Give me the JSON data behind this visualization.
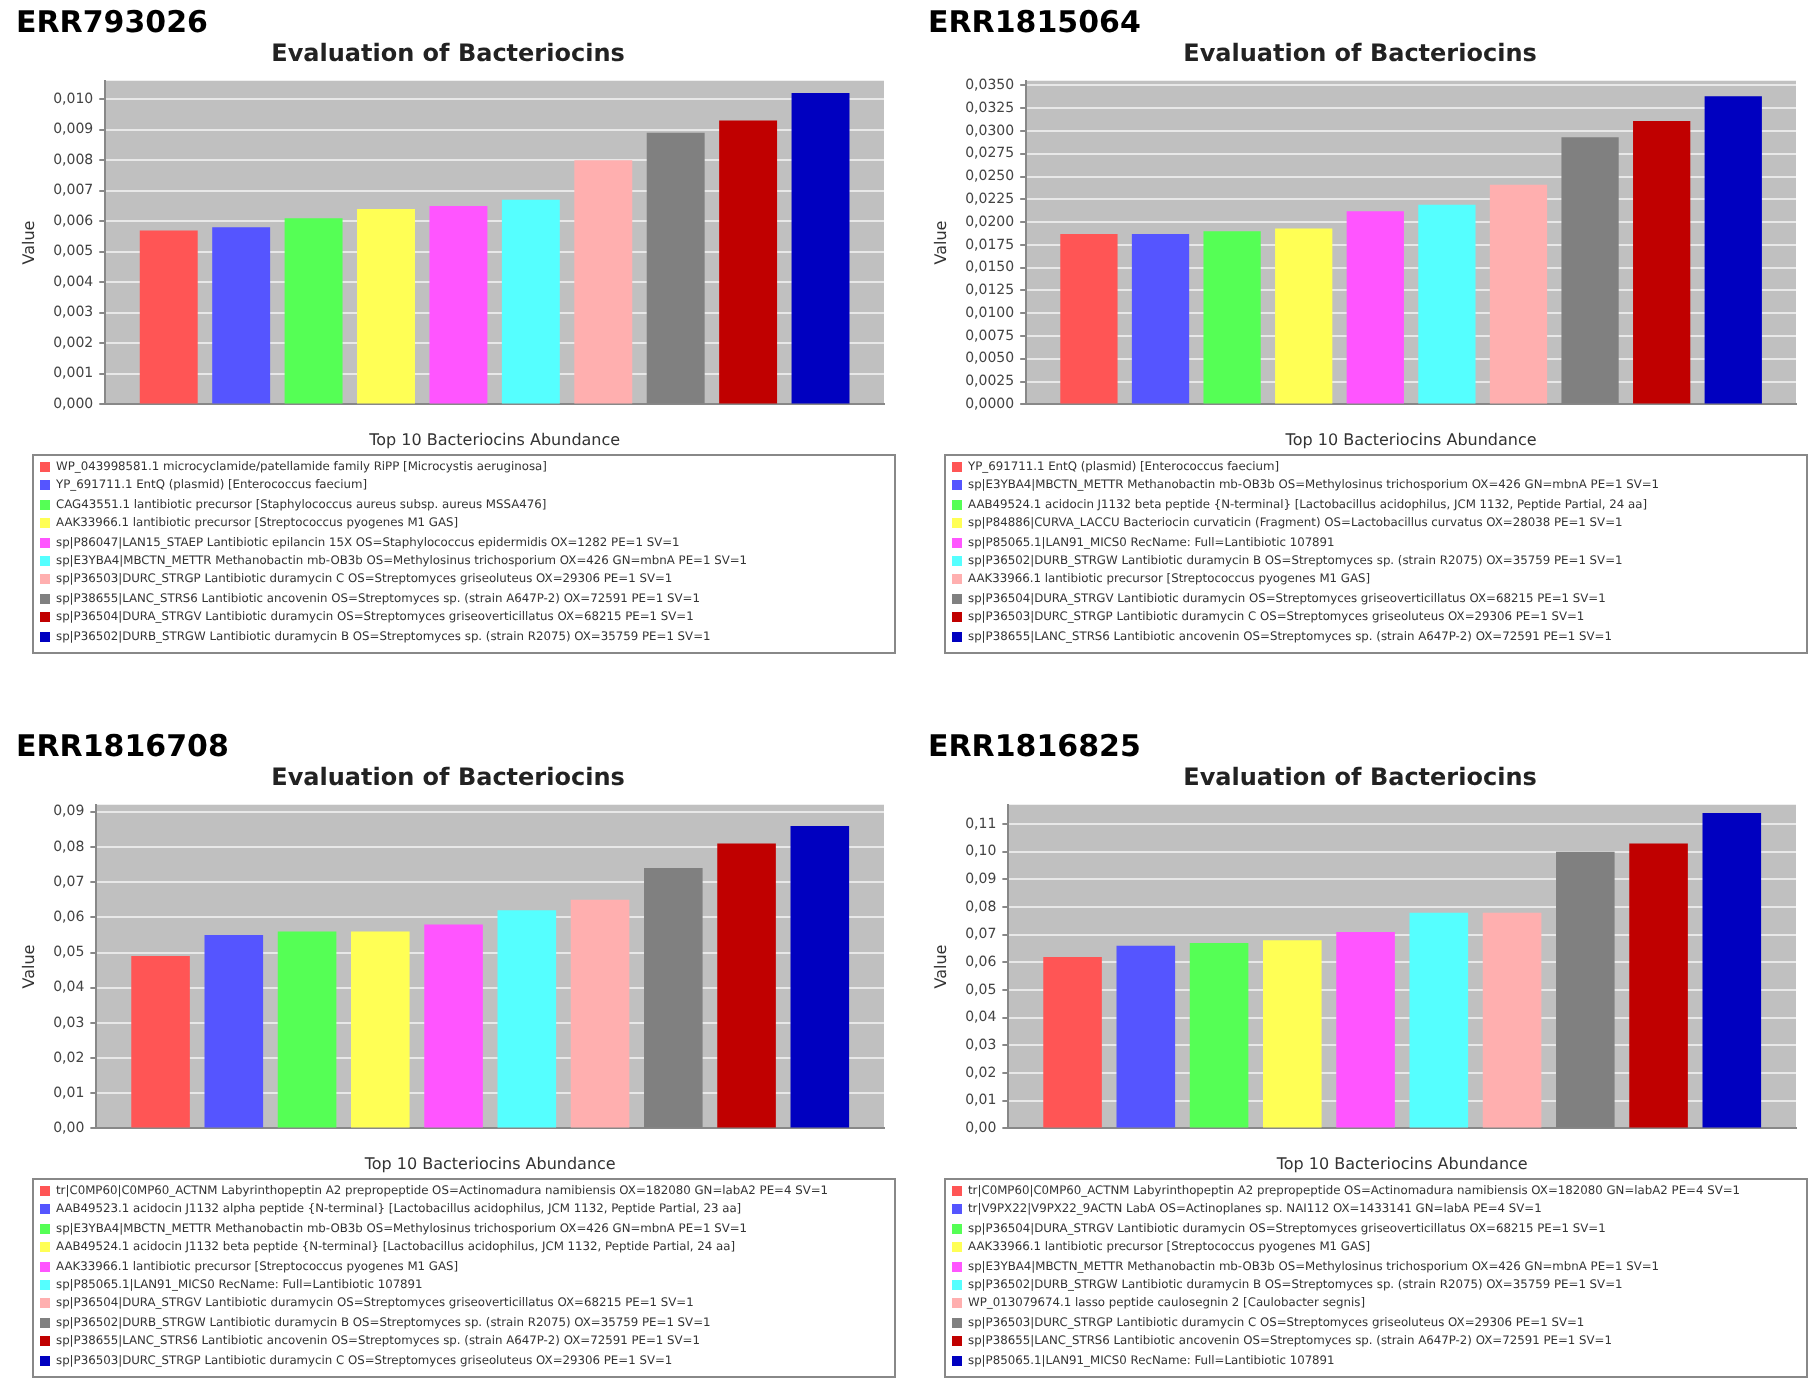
{
  "chart_data": [
    {
      "type": "bar",
      "annotations": [
        "ERR793026"
      ],
      "title": "Evaluation of Bacteriocins",
      "xlabel": "Top 10 Bacteriocins Abundance",
      "ylabel": "Value",
      "categories": [
        null
      ],
      "grid": "y",
      "legend": "bottom",
      "ylim": [
        0,
        0.0106
      ],
      "yticks": [
        {
          "value": 0,
          "label": "0,000"
        },
        {
          "value": 0.001,
          "label": "0,001"
        },
        {
          "value": 0.002,
          "label": "0,002"
        },
        {
          "value": 0.003,
          "label": "0,003"
        },
        {
          "value": 0.004,
          "label": "0,004"
        },
        {
          "value": 0.005,
          "label": "0,005"
        },
        {
          "value": 0.006,
          "label": "0,006"
        },
        {
          "value": 0.007,
          "label": "0,007"
        },
        {
          "value": 0.008,
          "label": "0,008"
        },
        {
          "value": 0.009,
          "label": "0,009"
        },
        {
          "value": 0.01,
          "label": "0,010"
        }
      ],
      "series": [
        {
          "name": "WP_043998581.1 microcyclamide/patellamide family RiPP [Microcystis aeruginosa]",
          "color": "#ff5555",
          "values": [
            0.0057
          ]
        },
        {
          "name": "YP_691711.1 EntQ (plasmid) [Enterococcus faecium]",
          "color": "#5555ff",
          "values": [
            0.0058
          ]
        },
        {
          "name": "CAG43551.1 lantibiotic precursor [Staphylococcus aureus subsp. aureus MSSA476]",
          "color": "#55ff55",
          "values": [
            0.0061
          ]
        },
        {
          "name": "AAK33966.1 lantibiotic precursor [Streptococcus pyogenes M1 GAS]",
          "color": "#ffff55",
          "values": [
            0.0064
          ]
        },
        {
          "name": "sp|P86047|LAN15_STAEP Lantibiotic epilancin 15X OS=Staphylococcus epidermidis OX=1282 PE=1 SV=1",
          "color": "#ff55ff",
          "values": [
            0.0065
          ]
        },
        {
          "name": "sp|E3YBA4|MBCTN_METTR Methanobactin mb-OB3b OS=Methylosinus trichosporium OX=426 GN=mbnA PE=1 SV=1",
          "color": "#55ffff",
          "values": [
            0.0067
          ]
        },
        {
          "name": "sp|P36503|DURC_STRGP Lantibiotic duramycin C OS=Streptomyces griseoluteus OX=29306 PE=1 SV=1",
          "color": "#ffafaf",
          "values": [
            0.008
          ]
        },
        {
          "name": "sp|P38655|LANC_STRS6 Lantibiotic ancovenin OS=Streptomyces sp. (strain A647P-2) OX=72591 PE=1 SV=1",
          "color": "#808080",
          "values": [
            0.0089
          ]
        },
        {
          "name": "sp|P36504|DURA_STRGV Lantibiotic duramycin OS=Streptomyces griseoverticillatus OX=68215 PE=1 SV=1",
          "color": "#c00000",
          "values": [
            0.0093
          ]
        },
        {
          "name": "sp|P36502|DURB_STRGW Lantibiotic duramycin B OS=Streptomyces sp. (strain R2075) OX=35759 PE=1 SV=1",
          "color": "#0000c0",
          "values": [
            0.0102
          ]
        }
      ]
    },
    {
      "type": "bar",
      "annotations": [
        "ERR1815064"
      ],
      "title": "Evaluation of Bacteriocins",
      "xlabel": "Top 10 Bacteriocins Abundance",
      "ylabel": "Value",
      "categories": [
        null
      ],
      "grid": "y",
      "legend": "bottom",
      "ylim": [
        0,
        0.0355
      ],
      "yticks": [
        {
          "value": 0,
          "label": "0,0000"
        },
        {
          "value": 0.0025,
          "label": "0,0025"
        },
        {
          "value": 0.005,
          "label": "0,0050"
        },
        {
          "value": 0.0075,
          "label": "0,0075"
        },
        {
          "value": 0.01,
          "label": "0,0100"
        },
        {
          "value": 0.0125,
          "label": "0,0125"
        },
        {
          "value": 0.015,
          "label": "0,0150"
        },
        {
          "value": 0.0175,
          "label": "0,0175"
        },
        {
          "value": 0.02,
          "label": "0,0200"
        },
        {
          "value": 0.0225,
          "label": "0,0225"
        },
        {
          "value": 0.025,
          "label": "0,0250"
        },
        {
          "value": 0.0275,
          "label": "0,0275"
        },
        {
          "value": 0.03,
          "label": "0,0300"
        },
        {
          "value": 0.0325,
          "label": "0,0325"
        },
        {
          "value": 0.035,
          "label": "0,0350"
        }
      ],
      "series": [
        {
          "name": "YP_691711.1 EntQ (plasmid) [Enterococcus faecium]",
          "color": "#ff5555",
          "values": [
            0.0187
          ]
        },
        {
          "name": "sp|E3YBA4|MBCTN_METTR Methanobactin mb-OB3b OS=Methylosinus trichosporium OX=426 GN=mbnA PE=1 SV=1",
          "color": "#5555ff",
          "values": [
            0.0187
          ]
        },
        {
          "name": "AAB49524.1 acidocin J1132 beta peptide {N-terminal} [Lactobacillus acidophilus, JCM 1132, Peptide Partial, 24 aa]",
          "color": "#55ff55",
          "values": [
            0.019
          ]
        },
        {
          "name": "sp|P84886|CURVA_LACCU Bacteriocin curvaticin (Fragment) OS=Lactobacillus curvatus OX=28038 PE=1 SV=1",
          "color": "#ffff55",
          "values": [
            0.0193
          ]
        },
        {
          "name": "sp|P85065.1|LAN91_MICS0 RecName: Full=Lantibiotic 107891",
          "color": "#ff55ff",
          "values": [
            0.0212
          ]
        },
        {
          "name": "sp|P36502|DURB_STRGW Lantibiotic duramycin B OS=Streptomyces sp. (strain R2075) OX=35759 PE=1 SV=1",
          "color": "#55ffff",
          "values": [
            0.0219
          ]
        },
        {
          "name": "AAK33966.1 lantibiotic precursor [Streptococcus pyogenes M1 GAS]",
          "color": "#ffafaf",
          "values": [
            0.0241
          ]
        },
        {
          "name": "sp|P36504|DURA_STRGV Lantibiotic duramycin OS=Streptomyces griseoverticillatus OX=68215 PE=1 SV=1",
          "color": "#808080",
          "values": [
            0.0293
          ]
        },
        {
          "name": "sp|P36503|DURC_STRGP Lantibiotic duramycin C OS=Streptomyces griseoluteus OX=29306 PE=1 SV=1",
          "color": "#c00000",
          "values": [
            0.0311
          ]
        },
        {
          "name": "sp|P38655|LANC_STRS6 Lantibiotic ancovenin OS=Streptomyces sp. (strain A647P-2) OX=72591 PE=1 SV=1",
          "color": "#0000c0",
          "values": [
            0.0338
          ]
        }
      ]
    },
    {
      "type": "bar",
      "annotations": [
        "ERR1816708"
      ],
      "title": "Evaluation of Bacteriocins",
      "xlabel": "Top 10 Bacteriocins Abundance",
      "ylabel": "Value",
      "categories": [
        null
      ],
      "grid": "y",
      "legend": "bottom",
      "ylim": [
        0,
        0.092
      ],
      "yticks": [
        {
          "value": 0,
          "label": "0,00"
        },
        {
          "value": 0.01,
          "label": "0,01"
        },
        {
          "value": 0.02,
          "label": "0,02"
        },
        {
          "value": 0.03,
          "label": "0,03"
        },
        {
          "value": 0.04,
          "label": "0,04"
        },
        {
          "value": 0.05,
          "label": "0,05"
        },
        {
          "value": 0.06,
          "label": "0,06"
        },
        {
          "value": 0.07,
          "label": "0,07"
        },
        {
          "value": 0.08,
          "label": "0,08"
        },
        {
          "value": 0.09,
          "label": "0,09"
        }
      ],
      "series": [
        {
          "name": "tr|C0MP60|C0MP60_ACTNM Labyrinthopeptin A2 prepropeptide OS=Actinomadura namibiensis OX=182080 GN=labA2 PE=4 SV=1",
          "color": "#ff5555",
          "values": [
            0.049
          ]
        },
        {
          "name": "AAB49523.1 acidocin J1132 alpha peptide {N-terminal} [Lactobacillus acidophilus, JCM 1132, Peptide Partial, 23 aa]",
          "color": "#5555ff",
          "values": [
            0.055
          ]
        },
        {
          "name": "sp|E3YBA4|MBCTN_METTR Methanobactin mb-OB3b OS=Methylosinus trichosporium OX=426 GN=mbnA PE=1 SV=1",
          "color": "#55ff55",
          "values": [
            0.056
          ]
        },
        {
          "name": "AAB49524.1 acidocin J1132 beta peptide {N-terminal} [Lactobacillus acidophilus, JCM 1132, Peptide Partial, 24 aa]",
          "color": "#ffff55",
          "values": [
            0.056
          ]
        },
        {
          "name": "AAK33966.1 lantibiotic precursor [Streptococcus pyogenes M1 GAS]",
          "color": "#ff55ff",
          "values": [
            0.058
          ]
        },
        {
          "name": "sp|P85065.1|LAN91_MICS0 RecName: Full=Lantibiotic 107891",
          "color": "#55ffff",
          "values": [
            0.062
          ]
        },
        {
          "name": "sp|P36504|DURA_STRGV Lantibiotic duramycin OS=Streptomyces griseoverticillatus OX=68215 PE=1 SV=1",
          "color": "#ffafaf",
          "values": [
            0.065
          ]
        },
        {
          "name": "sp|P36502|DURB_STRGW Lantibiotic duramycin B OS=Streptomyces sp. (strain R2075) OX=35759 PE=1 SV=1",
          "color": "#808080",
          "values": [
            0.074
          ]
        },
        {
          "name": "sp|P38655|LANC_STRS6 Lantibiotic ancovenin OS=Streptomyces sp. (strain A647P-2) OX=72591 PE=1 SV=1",
          "color": "#c00000",
          "values": [
            0.081
          ]
        },
        {
          "name": "sp|P36503|DURC_STRGP Lantibiotic duramycin C OS=Streptomyces griseoluteus OX=29306 PE=1 SV=1",
          "color": "#0000c0",
          "values": [
            0.086
          ]
        }
      ]
    },
    {
      "type": "bar",
      "annotations": [
        "ERR1816825"
      ],
      "title": "Evaluation of Bacteriocins",
      "xlabel": "Top 10 Bacteriocins Abundance",
      "ylabel": "Value",
      "categories": [
        null
      ],
      "grid": "y",
      "legend": "bottom",
      "ylim": [
        0,
        0.117
      ],
      "yticks": [
        {
          "value": 0,
          "label": "0,00"
        },
        {
          "value": 0.01,
          "label": "0,01"
        },
        {
          "value": 0.02,
          "label": "0,02"
        },
        {
          "value": 0.03,
          "label": "0,03"
        },
        {
          "value": 0.04,
          "label": "0,04"
        },
        {
          "value": 0.05,
          "label": "0,05"
        },
        {
          "value": 0.06,
          "label": "0,06"
        },
        {
          "value": 0.07,
          "label": "0,07"
        },
        {
          "value": 0.08,
          "label": "0,08"
        },
        {
          "value": 0.09,
          "label": "0,09"
        },
        {
          "value": 0.1,
          "label": "0,10"
        },
        {
          "value": 0.11,
          "label": "0,11"
        }
      ],
      "series": [
        {
          "name": "tr|C0MP60|C0MP60_ACTNM Labyrinthopeptin A2 prepropeptide OS=Actinomadura namibiensis OX=182080 GN=labA2 PE=4 SV=1",
          "color": "#ff5555",
          "values": [
            0.062
          ]
        },
        {
          "name": "tr|V9PX22|V9PX22_9ACTN LabA OS=Actinoplanes sp. NAI112 OX=1433141 GN=labA PE=4 SV=1",
          "color": "#5555ff",
          "values": [
            0.066
          ]
        },
        {
          "name": "sp|P36504|DURA_STRGV Lantibiotic duramycin OS=Streptomyces griseoverticillatus OX=68215 PE=1 SV=1",
          "color": "#55ff55",
          "values": [
            0.067
          ]
        },
        {
          "name": "AAK33966.1 lantibiotic precursor [Streptococcus pyogenes M1 GAS]",
          "color": "#ffff55",
          "values": [
            0.068
          ]
        },
        {
          "name": "sp|E3YBA4|MBCTN_METTR Methanobactin mb-OB3b OS=Methylosinus trichosporium OX=426 GN=mbnA PE=1 SV=1",
          "color": "#ff55ff",
          "values": [
            0.071
          ]
        },
        {
          "name": "sp|P36502|DURB_STRGW Lantibiotic duramycin B OS=Streptomyces sp. (strain R2075) OX=35759 PE=1 SV=1",
          "color": "#55ffff",
          "values": [
            0.078
          ]
        },
        {
          "name": "WP_013079674.1 lasso peptide caulosegnin 2 [Caulobacter segnis]",
          "color": "#ffafaf",
          "values": [
            0.078
          ]
        },
        {
          "name": "sp|P36503|DURC_STRGP Lantibiotic duramycin C OS=Streptomyces griseoluteus OX=29306 PE=1 SV=1",
          "color": "#808080",
          "values": [
            0.1
          ]
        },
        {
          "name": "sp|P38655|LANC_STRS6 Lantibiotic ancovenin OS=Streptomyces sp. (strain A647P-2) OX=72591 PE=1 SV=1",
          "color": "#c00000",
          "values": [
            0.103
          ]
        },
        {
          "name": "sp|P85065.1|LAN91_MICS0 RecName: Full=Lantibiotic 107891",
          "color": "#0000c0",
          "values": [
            0.114
          ]
        }
      ]
    }
  ]
}
